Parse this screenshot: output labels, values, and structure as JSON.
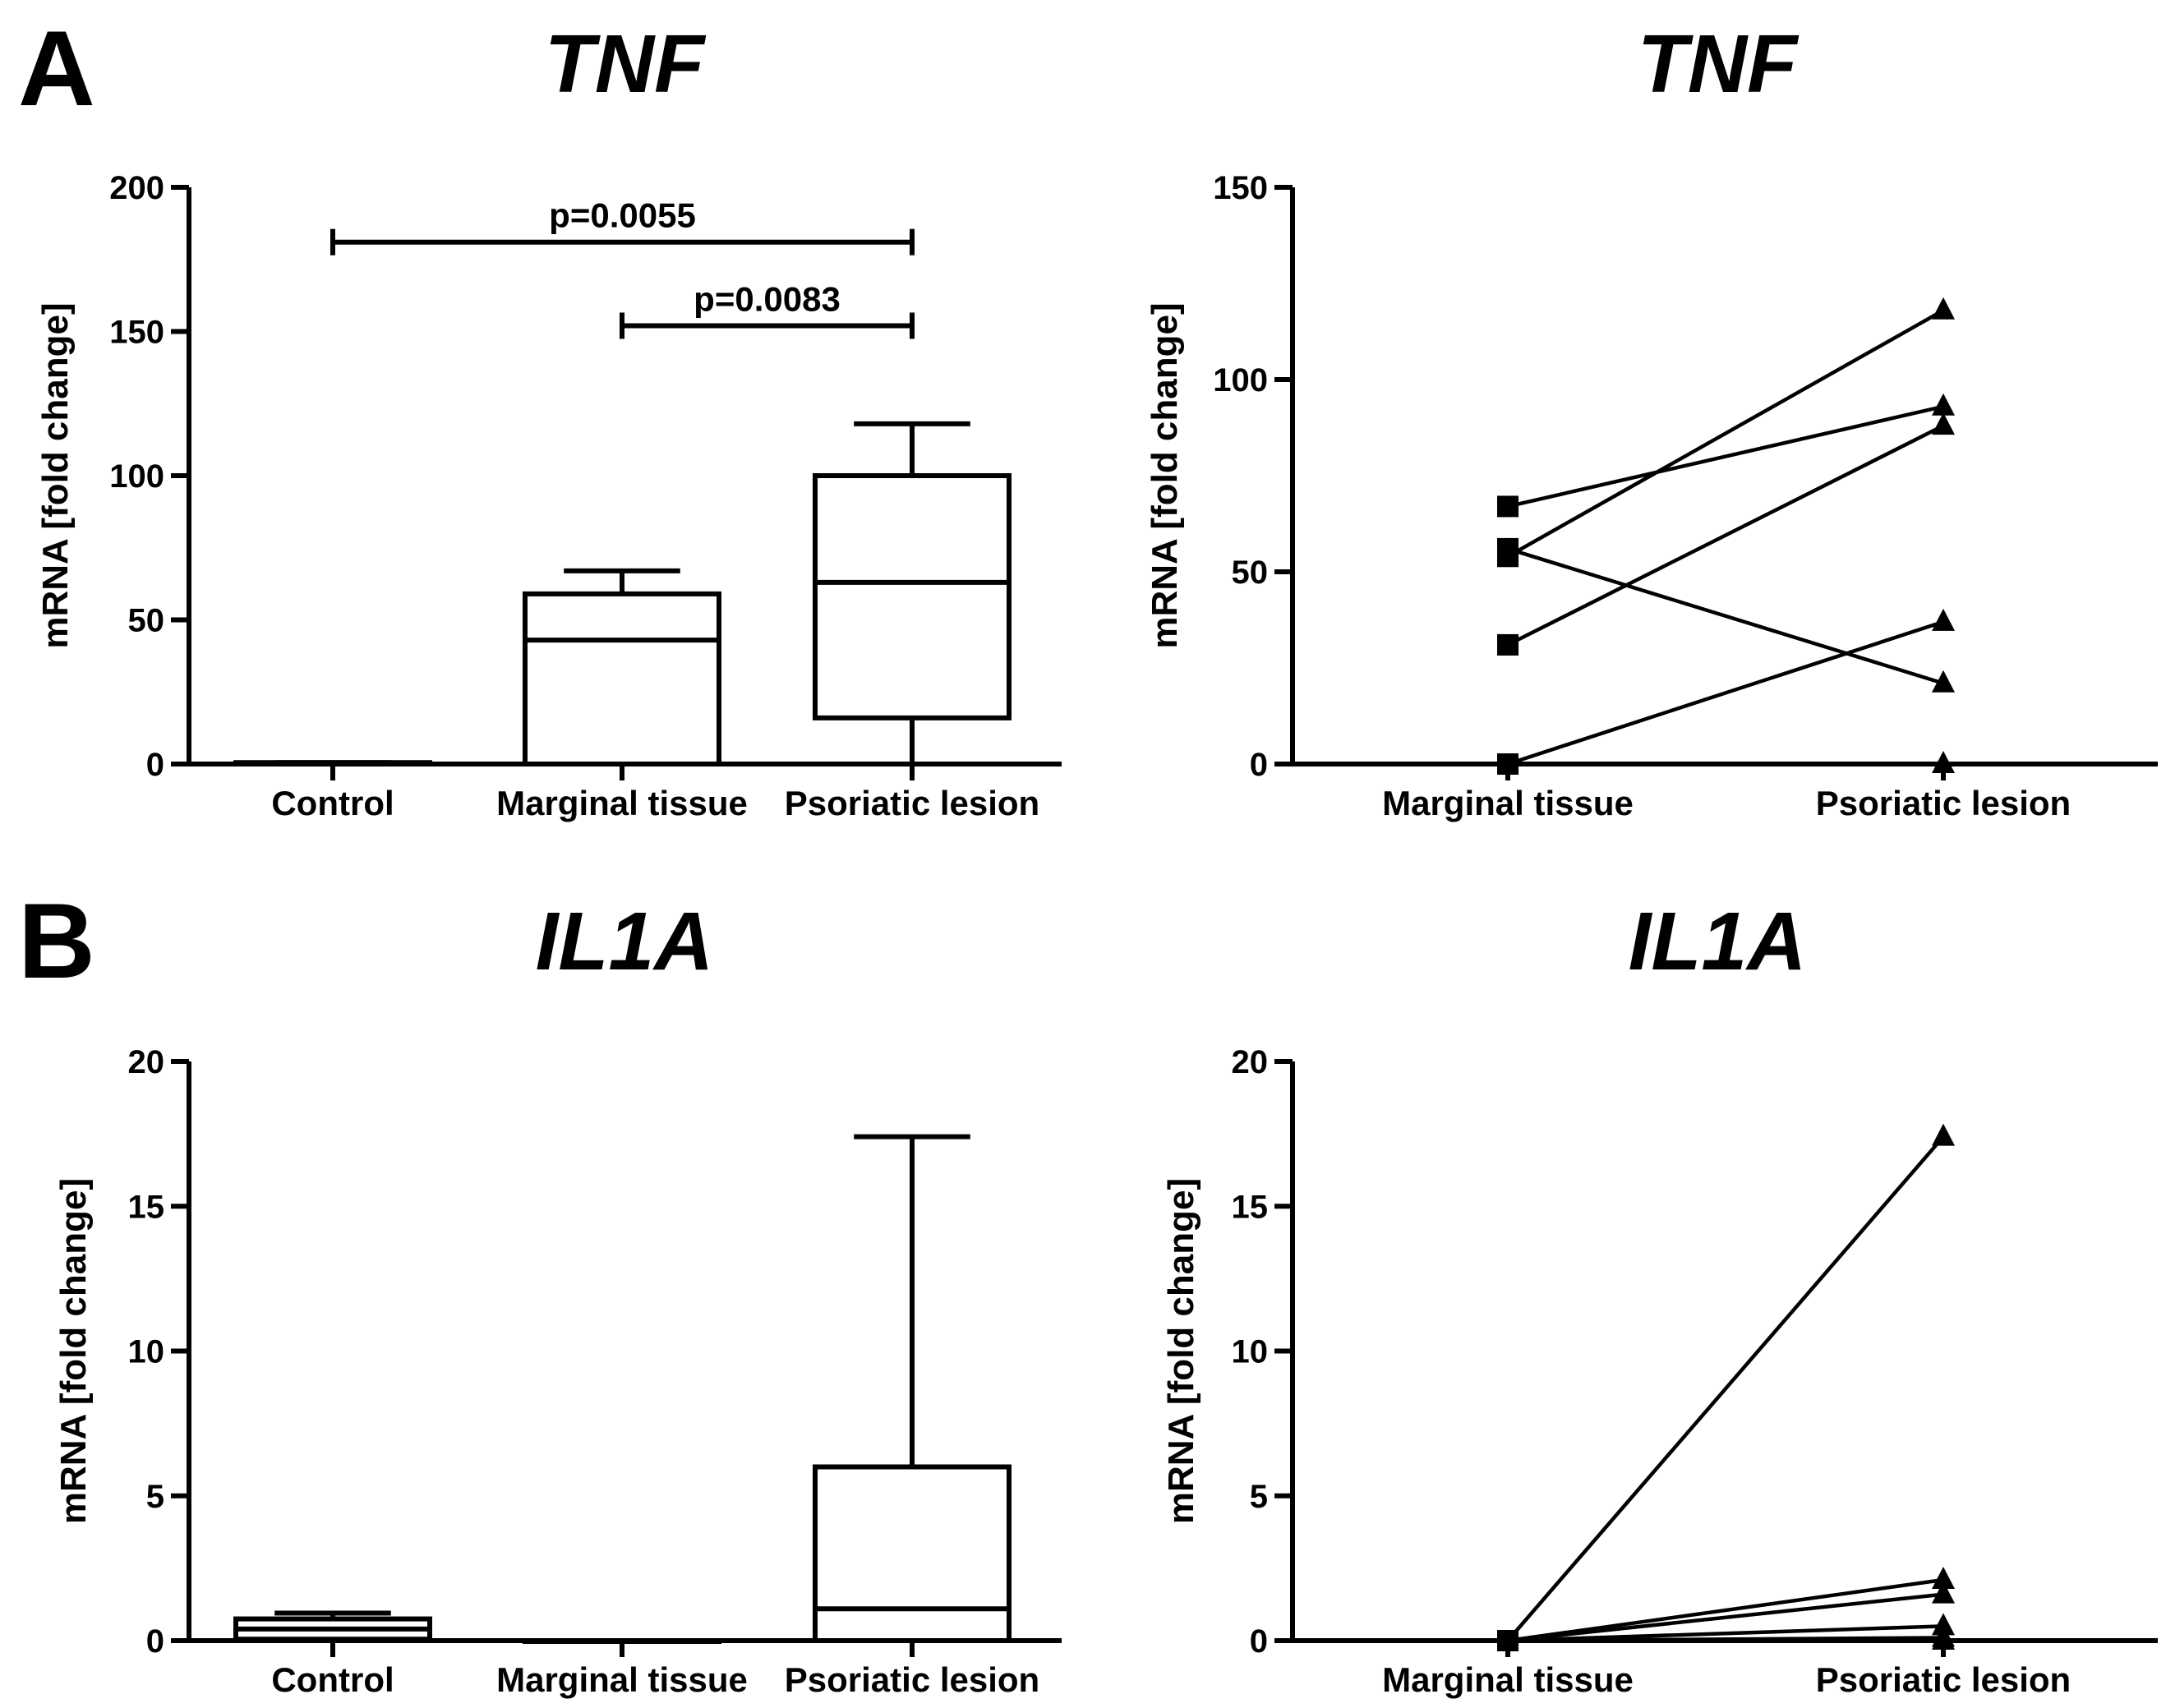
{
  "panels": [
    {
      "letter": "A"
    },
    {
      "letter": "B"
    }
  ],
  "chart_data": [
    {
      "type": "box",
      "panel": "A",
      "title": "TNF",
      "ylabel": "mRNA [fold change]",
      "ylim": [
        0,
        200
      ],
      "yticks": [
        0,
        50,
        100,
        150,
        200
      ],
      "categories": [
        "Control",
        "Marginal tissue",
        "Psoriatic lesion"
      ],
      "boxes": [
        {
          "min": 0,
          "q1": 0,
          "median": 0,
          "q3": 0.5,
          "max": 0.5
        },
        {
          "min": 0,
          "q1": 0,
          "median": 43,
          "q3": 59,
          "max": 67
        },
        {
          "min": 0,
          "q1": 16,
          "median": 63,
          "q3": 100,
          "max": 118
        }
      ],
      "annotations": [
        {
          "from": "Control",
          "to": "Psoriatic lesion",
          "y": 181,
          "text": "p=0.0055"
        },
        {
          "from": "Marginal tissue",
          "to": "Psoriatic lesion",
          "y": 152,
          "text": "p=0.0083"
        }
      ]
    },
    {
      "type": "line",
      "panel": "A",
      "title": "TNF",
      "ylabel": "mRNA [fold change]",
      "ylim": [
        0,
        150
      ],
      "yticks": [
        0,
        50,
        100,
        150
      ],
      "categories": [
        "Marginal tissue",
        "Psoriatic lesion"
      ],
      "series": [
        {
          "values": [
            67,
            93
          ]
        },
        {
          "values": [
            56,
            21
          ]
        },
        {
          "values": [
            54,
            118
          ]
        },
        {
          "values": [
            31,
            88
          ]
        },
        {
          "values": [
            0,
            37
          ]
        },
        {
          "values": [
            0,
            0
          ]
        }
      ]
    },
    {
      "type": "box",
      "panel": "B",
      "title": "IL1A",
      "ylabel": "mRNA [fold change]",
      "ylim": [
        0,
        20
      ],
      "yticks": [
        0,
        5,
        10,
        15,
        20
      ],
      "categories": [
        "Control",
        "Marginal tissue",
        "Psoriatic lesion"
      ],
      "boxes": [
        {
          "min": 0,
          "q1": 0.05,
          "median": 0.4,
          "q3": 0.75,
          "max": 0.95
        },
        {
          "min": 0,
          "q1": 0,
          "median": 0,
          "q3": 0,
          "max": 0
        },
        {
          "min": 0,
          "q1": 0,
          "median": 1.1,
          "q3": 6.0,
          "max": 17.4
        }
      ],
      "annotations": []
    },
    {
      "type": "line",
      "panel": "B",
      "title": "IL1A",
      "ylabel": "mRNA [fold change]",
      "ylim": [
        0,
        20
      ],
      "yticks": [
        0,
        5,
        10,
        15,
        20
      ],
      "categories": [
        "Marginal tissue",
        "Psoriatic lesion"
      ],
      "series": [
        {
          "values": [
            0,
            17.4
          ]
        },
        {
          "values": [
            0,
            2.1
          ]
        },
        {
          "values": [
            0,
            1.6
          ]
        },
        {
          "values": [
            0,
            0.5
          ]
        },
        {
          "values": [
            0,
            0.1
          ]
        },
        {
          "values": [
            0,
            0
          ]
        }
      ]
    }
  ]
}
